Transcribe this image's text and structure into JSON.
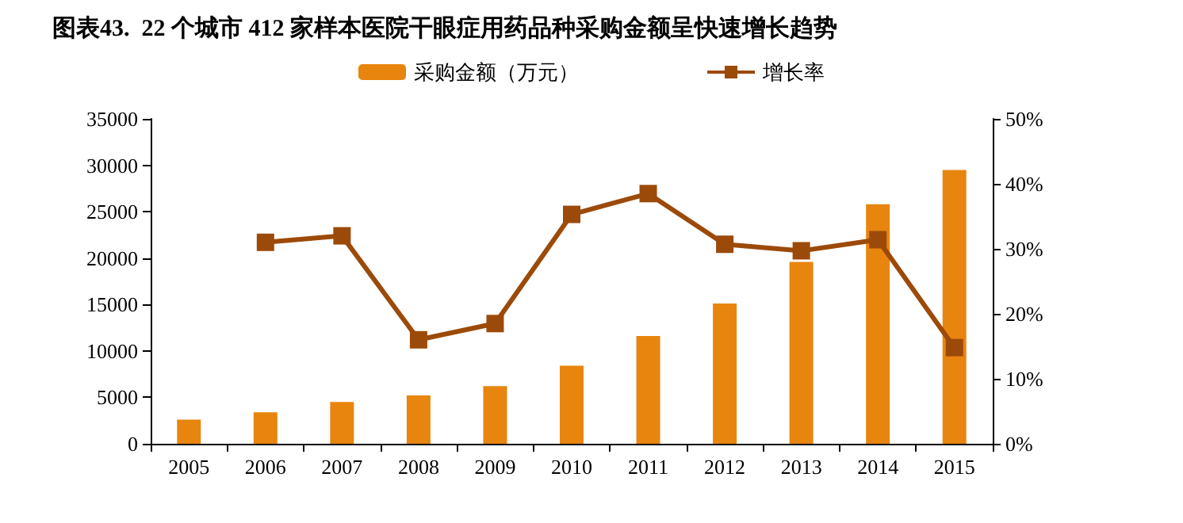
{
  "chart_data": {
    "type": "bar",
    "title": "图表43.  22 个城市 412 家样本医院干眼症用药品种采购金额呈快速增长趋势",
    "categories": [
      "2005",
      "2006",
      "2007",
      "2008",
      "2009",
      "2010",
      "2011",
      "2012",
      "2013",
      "2014",
      "2015"
    ],
    "series": [
      {
        "name": "采购金额（万元）",
        "color": "#e8850f",
        "values": [
          2600,
          3400,
          4500,
          5200,
          6200,
          8400,
          11600,
          15100,
          19600,
          25800,
          29500
        ]
      },
      {
        "name": "增长率",
        "type": "line",
        "axis": "y2",
        "color": "#9c4a0a",
        "values": [
          null,
          31,
          32,
          16,
          18.5,
          35.3,
          38.5,
          30.7,
          29.7,
          31.4,
          14.8
        ]
      }
    ],
    "ylim": [
      0,
      35000
    ],
    "yticks": [
      0,
      5000,
      10000,
      15000,
      20000,
      25000,
      30000,
      35000
    ],
    "y2lim": [
      0,
      50
    ],
    "y2ticks": [
      {
        "value": 0,
        "label": "0%"
      },
      {
        "value": 10,
        "label": "10%"
      },
      {
        "value": 20,
        "label": "20%"
      },
      {
        "value": 30,
        "label": "30%"
      },
      {
        "value": 40,
        "label": "40%"
      },
      {
        "value": 50,
        "label": "50%"
      }
    ],
    "grid": false,
    "legend": "top",
    "marker": "square"
  }
}
